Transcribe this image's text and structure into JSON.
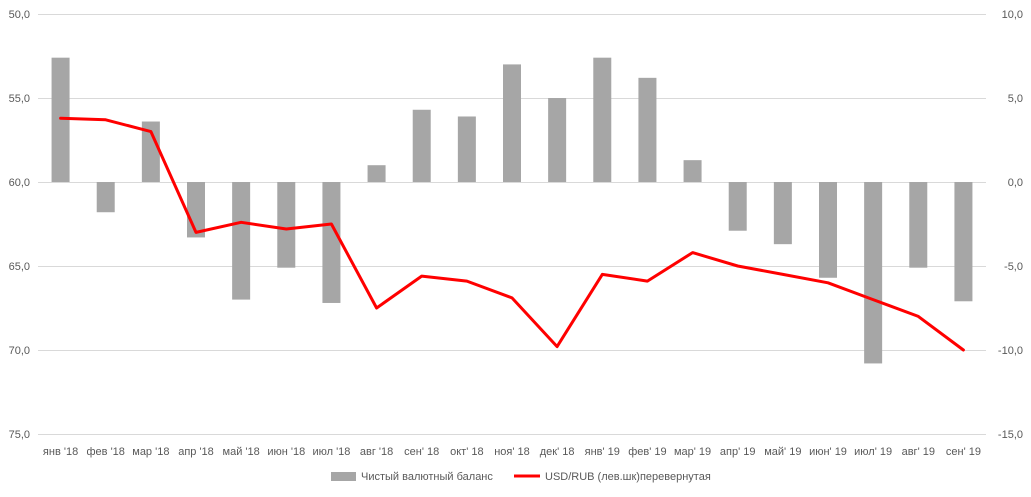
{
  "chart_data": {
    "type": "bar+line",
    "title": "",
    "categories": [
      "янв '18",
      "фев '18",
      "мар '18",
      "апр '18",
      "май '18",
      "июн '18",
      "июл '18",
      "авг '18",
      "сен' 18",
      "окт' 18",
      "ноя' 18",
      "дек' 18",
      "янв' 19",
      "фев' 19",
      "мар' 19",
      "апр' 19",
      "май' 19",
      "июн' 19",
      "июл' 19",
      "авг' 19",
      "сен' 19"
    ],
    "left_axis": {
      "ticks": [
        "50,0",
        "55,0",
        "60,0",
        "65,0",
        "70,0",
        "75,0"
      ],
      "tick_values": [
        50,
        55,
        60,
        65,
        70,
        75
      ],
      "range": [
        50,
        75
      ],
      "inverted": true
    },
    "right_axis": {
      "ticks": [
        "10,0",
        "5,0",
        "0,0",
        "-5,0",
        "-10,0",
        "-15,0"
      ],
      "tick_values": [
        10,
        5,
        0,
        -5,
        -10,
        -15
      ],
      "range": [
        -15,
        10
      ]
    },
    "series": [
      {
        "name": "Чистый валютный баланс",
        "type": "bar",
        "axis": "right",
        "color": "#a6a6a6",
        "values": [
          7.4,
          -1.8,
          3.6,
          -3.3,
          -7.0,
          -5.1,
          -7.2,
          1.0,
          4.3,
          3.9,
          7.0,
          5.0,
          7.4,
          6.2,
          1.3,
          -2.9,
          -3.7,
          -5.7,
          -10.8,
          -5.1,
          -7.1
        ]
      },
      {
        "name": "USD/RUB (лев.шк)перевернутая",
        "type": "line",
        "axis": "left",
        "color": "#ff0000",
        "values": [
          56.2,
          56.3,
          57.0,
          63.0,
          62.4,
          62.8,
          62.5,
          67.5,
          65.6,
          65.9,
          66.9,
          69.8,
          65.5,
          65.9,
          64.2,
          65.0,
          65.5,
          66.0,
          67.0,
          68.0,
          70.0
        ]
      }
    ],
    "legend": {
      "position": "bottom"
    }
  }
}
